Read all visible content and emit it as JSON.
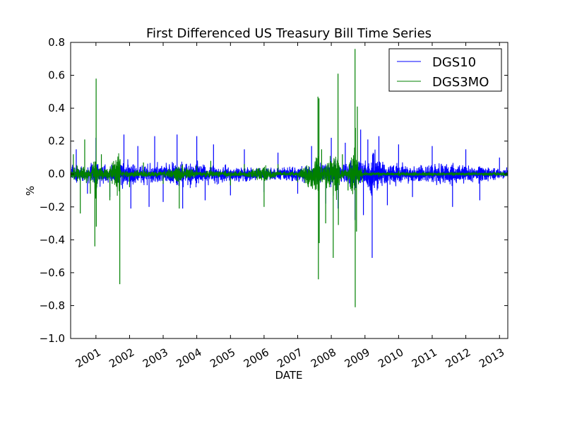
{
  "chart_data": {
    "type": "line",
    "title": "First Differenced US Treasury Bill Time Series",
    "xlabel": "DATE",
    "ylabel": "%",
    "ylim": [
      -1.0,
      0.8
    ],
    "xlim": [
      "2000-04-01",
      "2013-04-01"
    ],
    "yticks": [
      "0.8",
      "0.6",
      "0.4",
      "0.2",
      "0.0",
      "−0.2",
      "−0.4",
      "−0.6",
      "−0.8",
      "−1.0"
    ],
    "xticks": [
      "2001",
      "2002",
      "2003",
      "2004",
      "2005",
      "2006",
      "2007",
      "2008",
      "2009",
      "2010",
      "2011",
      "2012",
      "2013"
    ],
    "grid": false,
    "legend_position": "top-right",
    "series": [
      {
        "name": "DGS10",
        "color": "#0000ff",
        "x": [
          "2000-06-01",
          "2000-10-01",
          "2001-01-01",
          "2001-06-01",
          "2001-11-01",
          "2002-01-15",
          "2002-04-01",
          "2002-08-01",
          "2002-10-01",
          "2003-01-01",
          "2003-06-01",
          "2003-08-01",
          "2004-01-01",
          "2004-04-01",
          "2004-07-01",
          "2005-01-01",
          "2005-06-01",
          "2006-01-01",
          "2006-06-01",
          "2007-01-01",
          "2007-06-01",
          "2007-11-01",
          "2008-01-01",
          "2008-03-15",
          "2008-06-01",
          "2008-09-15",
          "2008-11-15",
          "2008-12-15",
          "2009-02-01",
          "2009-03-20",
          "2009-06-01",
          "2009-09-01",
          "2010-01-01",
          "2010-06-01",
          "2011-01-01",
          "2011-08-10",
          "2012-01-01",
          "2012-06-01",
          "2013-01-01",
          "2013-03-20"
        ],
        "values": [
          0.15,
          -0.12,
          0.22,
          -0.14,
          0.24,
          -0.21,
          0.17,
          -0.2,
          0.23,
          -0.17,
          0.24,
          -0.21,
          0.23,
          -0.16,
          0.18,
          -0.13,
          0.15,
          -0.11,
          0.13,
          -0.12,
          0.17,
          -0.18,
          0.22,
          -0.21,
          0.19,
          -0.28,
          0.27,
          -0.25,
          0.21,
          -0.51,
          0.23,
          -0.19,
          0.18,
          -0.14,
          0.17,
          -0.2,
          0.15,
          -0.16,
          0.1,
          0.04
        ]
      },
      {
        "name": "DGS3MO",
        "color": "#008000",
        "x": [
          "2000-05-01",
          "2000-07-15",
          "2000-09-01",
          "2000-11-01",
          "2000-12-20",
          "2001-01-03",
          "2001-01-05",
          "2001-03-01",
          "2001-06-01",
          "2001-09-17",
          "2001-09-20",
          "2002-01-01",
          "2002-06-01",
          "2003-01-01",
          "2003-06-25",
          "2004-01-01",
          "2004-06-01",
          "2005-01-01",
          "2005-06-01",
          "2006-01-01",
          "2006-06-01",
          "2007-01-01",
          "2007-08-09",
          "2007-08-14",
          "2007-08-20",
          "2007-08-23",
          "2007-09-18",
          "2007-11-01",
          "2008-01-22",
          "2008-03-14",
          "2008-03-18",
          "2008-05-01",
          "2008-07-01",
          "2008-09-15",
          "2008-09-17",
          "2008-09-19",
          "2008-10-01",
          "2008-10-10",
          "2008-12-01",
          "2009-01-01",
          "2009-06-01",
          "2010-01-01",
          "2011-01-01",
          "2012-01-01",
          "2013-03-20"
        ],
        "values": [
          0.12,
          -0.24,
          0.21,
          -0.12,
          -0.44,
          0.58,
          -0.32,
          0.12,
          -0.16,
          -0.67,
          0.09,
          -0.08,
          0.07,
          -0.06,
          -0.21,
          0.05,
          0.08,
          -0.07,
          0.06,
          -0.2,
          0.06,
          -0.05,
          0.47,
          -0.64,
          0.46,
          -0.42,
          0.15,
          -0.3,
          -0.51,
          0.61,
          -0.31,
          0.12,
          -0.1,
          0.76,
          -0.81,
          0.28,
          -0.35,
          0.41,
          -0.05,
          0.03,
          -0.02,
          0.02,
          0.01,
          -0.01,
          0.01
        ]
      }
    ]
  }
}
